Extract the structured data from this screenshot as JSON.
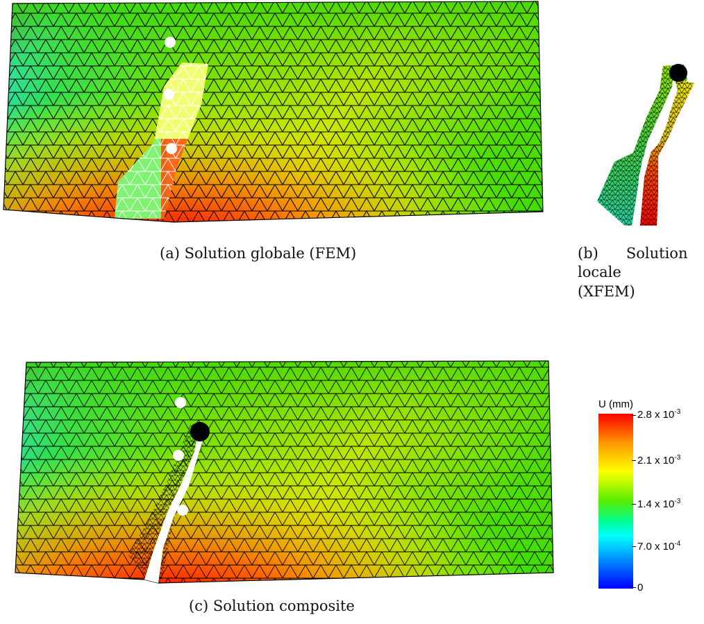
{
  "figure": {
    "panel_a": {
      "caption": "(a) Solution globale (FEM)"
    },
    "panel_b": {
      "caption_lines": [
        "(b)      Solution",
        "locale",
        "(XFEM)"
      ]
    },
    "panel_c": {
      "caption": "(c) Solution composite"
    }
  },
  "colorbar": {
    "title": "U (mm)",
    "labels": [
      {
        "value": "2.8 x 10",
        "exp": "-3"
      },
      {
        "value": "2.1 x 10",
        "exp": "-3"
      },
      {
        "value": "1.4 x 10",
        "exp": "-3"
      },
      {
        "value": "7.0 x 10",
        "exp": "-4"
      },
      {
        "value": "0",
        "exp": ""
      }
    ],
    "colors": [
      "#ff0000",
      "#ff9900",
      "#ffff00",
      "#55ee00",
      "#00ff99",
      "#00ffff",
      "#0080ff",
      "#0000ff"
    ]
  }
}
